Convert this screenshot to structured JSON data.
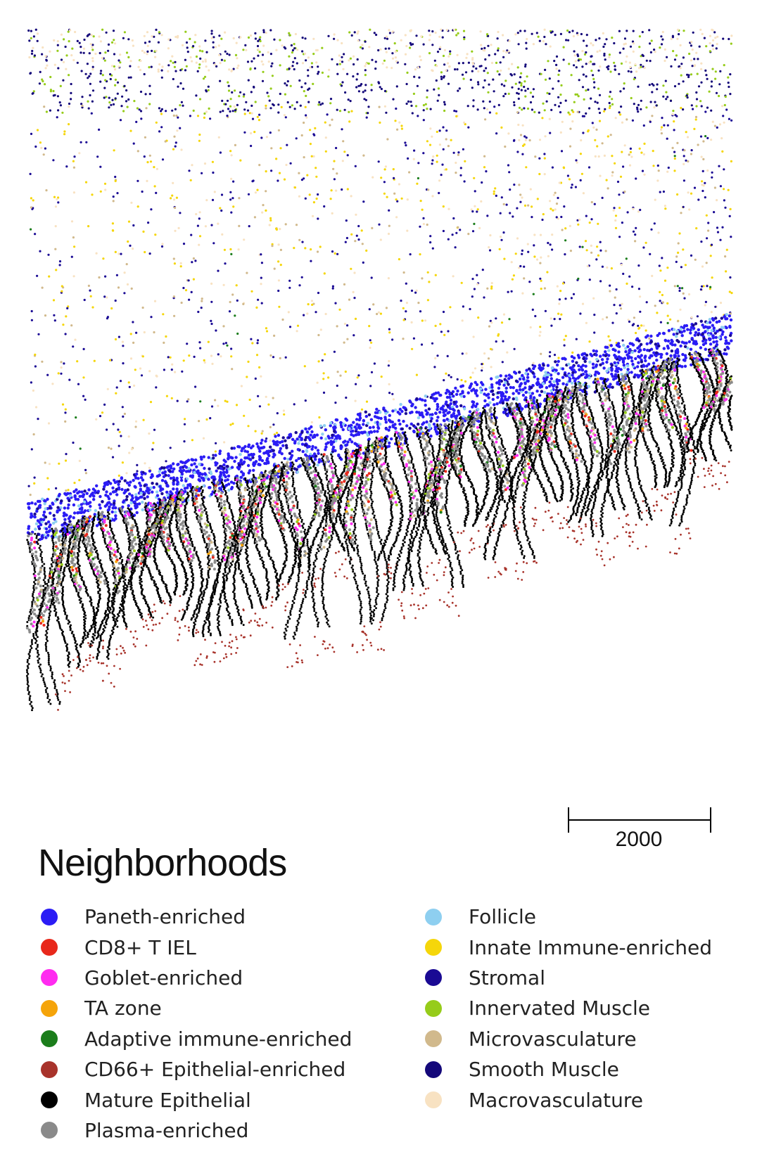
{
  "chart_data": {
    "type": "scatter",
    "title": "",
    "xlabel": "",
    "ylabel": "",
    "grid": false,
    "legend_placement": "bottom",
    "legend_title": "Neighborhoods",
    "scale_bar_label": "2000",
    "series": [
      {
        "name": "Paneth-enriched",
        "color": "#2b1cf5"
      },
      {
        "name": "CD8+ T IEL",
        "color": "#e8281b"
      },
      {
        "name": "Goblet-enriched",
        "color": "#ff2bf0"
      },
      {
        "name": "TA zone",
        "color": "#f5a40a"
      },
      {
        "name": "Adaptive immune-enriched",
        "color": "#1b7d1b"
      },
      {
        "name": "CD66+ Epithelial-enriched",
        "color": "#a8332b"
      },
      {
        "name": "Mature Epithelial",
        "color": "#000000"
      },
      {
        "name": "Plasma-enriched",
        "color": "#8a8a8a"
      },
      {
        "name": "Follicle",
        "color": "#8ecff0"
      },
      {
        "name": "Innate Immune-enriched",
        "color": "#f5d60a"
      },
      {
        "name": "Stromal",
        "color": "#1a0a94"
      },
      {
        "name": "Innervated Muscle",
        "color": "#96cc1a"
      },
      {
        "name": "Microvasculature",
        "color": "#d1b98c"
      },
      {
        "name": "Smooth Muscle",
        "color": "#14087a"
      },
      {
        "name": "Macrovasculature",
        "color": "#f8e2c2"
      }
    ]
  }
}
